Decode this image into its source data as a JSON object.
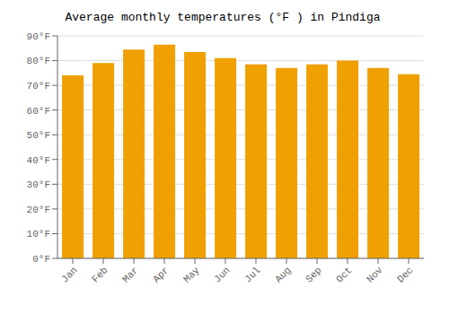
{
  "chart_data": {
    "type": "bar",
    "title": "Average monthly temperatures (°F ) in Pindiga",
    "categories": [
      "Jan",
      "Feb",
      "Mar",
      "Apr",
      "May",
      "Jun",
      "Jul",
      "Aug",
      "Sep",
      "Oct",
      "Nov",
      "Dec"
    ],
    "values": [
      74,
      79,
      84.5,
      86.5,
      83.5,
      81,
      78.5,
      77,
      78.5,
      80,
      77,
      74.5
    ],
    "color": "#F0A000",
    "ylim": [
      0,
      90
    ],
    "yticks": [
      {
        "value": 0,
        "label": "0°F"
      },
      {
        "value": 10,
        "label": "10°F"
      },
      {
        "value": 20,
        "label": "20°F"
      },
      {
        "value": 30,
        "label": "30°F"
      },
      {
        "value": 40,
        "label": "40°F"
      },
      {
        "value": 50,
        "label": "50°F"
      },
      {
        "value": 60,
        "label": "60°F"
      },
      {
        "value": 70,
        "label": "70°F"
      },
      {
        "value": 80,
        "label": "80°F"
      },
      {
        "value": 90,
        "label": "90°F"
      }
    ],
    "grid": true
  }
}
